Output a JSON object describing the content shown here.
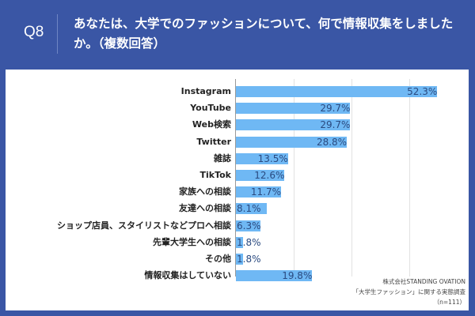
{
  "header": {
    "question_number": "Q8",
    "question_text": "あなたは、大学でのファッションについて、何で情報収集をしましたか。（複数回答）"
  },
  "source": {
    "line1": "株式会社STANDING OVATION",
    "line2": "「大学生ファッション」に関する実態調査",
    "line3": "（n=111）"
  },
  "chart_data": {
    "type": "bar",
    "orientation": "horizontal",
    "title": "あなたは、大学でのファッションについて、何で情報収集をしましたか。（複数回答）",
    "categories": [
      "Instagram",
      "YouTube",
      "Web検索",
      "Twitter",
      "雑誌",
      "TikTok",
      "家族への相談",
      "友達への相談",
      "ショップ店員、スタイリストなどプロへ相談",
      "先輩大学生への相談",
      "その他",
      "情報収集はしていない"
    ],
    "values": [
      52.3,
      29.7,
      29.7,
      28.8,
      13.5,
      12.6,
      11.7,
      8.1,
      6.3,
      1.8,
      1.8,
      19.8
    ],
    "labels": [
      "52.3%",
      "29.7%",
      "29.7%",
      "28.8%",
      "13.5%",
      "12.6%",
      "11.7%",
      "8.1%",
      "6.3%",
      "1.8%",
      "1.8%",
      "19.8%"
    ],
    "xlabel": "",
    "ylabel": "",
    "xlim": [
      0,
      60
    ],
    "gridlines": [
      15,
      30,
      45
    ],
    "grid": true,
    "bar_color": "#6fb8f4",
    "n": 111
  }
}
